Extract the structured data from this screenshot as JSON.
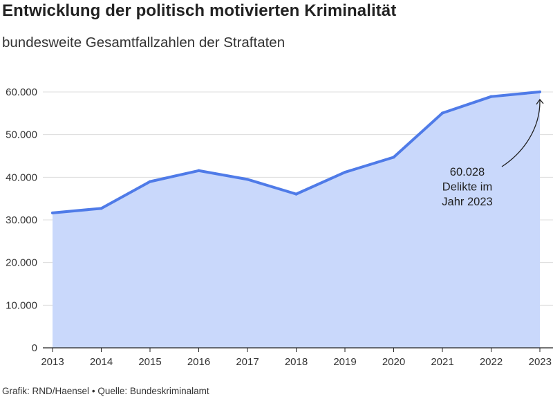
{
  "title": "Entwicklung der politisch motivierten Kriminalität",
  "subtitle": "bundesweite Gesamtfallzahlen der Straftaten",
  "footer": {
    "credit": "Grafik: RND/Haensel",
    "separator": "•",
    "source": "Quelle: Bundeskriminalamt"
  },
  "colors": {
    "line": "#4f7be8",
    "area": "#c9d8fb",
    "grid": "#dcdcdc",
    "axis": "#222222"
  },
  "chart_data": {
    "type": "area",
    "x": [
      "2013",
      "2014",
      "2015",
      "2016",
      "2017",
      "2018",
      "2019",
      "2020",
      "2021",
      "2022",
      "2023"
    ],
    "series": [
      {
        "values": [
          31645,
          32700,
          38981,
          41549,
          39505,
          36062,
          41177,
          44692,
          55048,
          58916,
          60028
        ]
      }
    ],
    "ylim": [
      0,
      60000
    ],
    "yticks": [
      0,
      10000,
      20000,
      30000,
      40000,
      50000,
      60000
    ],
    "ytick_labels": [
      "0",
      "10.000",
      "20.000",
      "30.000",
      "40.000",
      "50.000",
      "60.000"
    ],
    "grid": true,
    "annotation": {
      "lines": [
        "60.028",
        "Delikte im",
        "Jahr 2023"
      ],
      "target_index": 10
    }
  }
}
